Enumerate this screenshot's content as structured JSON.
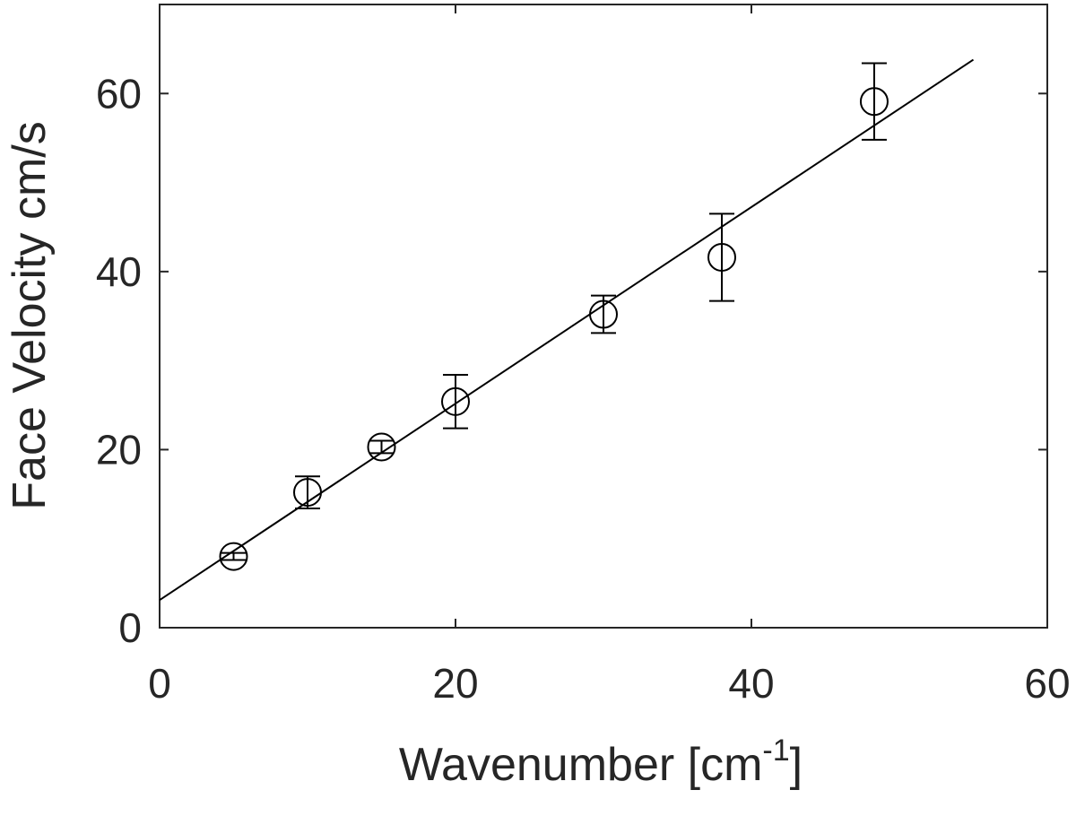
{
  "chart_data": {
    "type": "scatter",
    "xlabel": "Wavenumber [cm",
    "xlabel_superscript": "-1",
    "xlabel_suffix": "]",
    "ylabel": "Face Velocity cm/s",
    "xlim": [
      0,
      60
    ],
    "ylim": [
      0,
      70
    ],
    "x_ticks": [
      0,
      20,
      40,
      60
    ],
    "x_tick_labels": [
      "0",
      "20",
      "40",
      "60"
    ],
    "y_ticks": [
      0,
      20,
      40,
      60
    ],
    "y_tick_labels": [
      "0",
      "20",
      "40",
      "60"
    ],
    "grid": false,
    "points": [
      {
        "x": 5,
        "y": 8,
        "err": 0.4
      },
      {
        "x": 10,
        "y": 15.2,
        "err": 1.8
      },
      {
        "x": 15,
        "y": 20.3,
        "err": 0.7
      },
      {
        "x": 20,
        "y": 25.4,
        "err": 3.0
      },
      {
        "x": 30,
        "y": 35.2,
        "err": 2.1
      },
      {
        "x": 38,
        "y": 41.6,
        "err": 4.9
      },
      {
        "x": 48.3,
        "y": 59.1,
        "err": 4.3
      }
    ],
    "fit_line": {
      "x": [
        0,
        55
      ],
      "y": [
        3.1,
        63.8
      ]
    }
  }
}
